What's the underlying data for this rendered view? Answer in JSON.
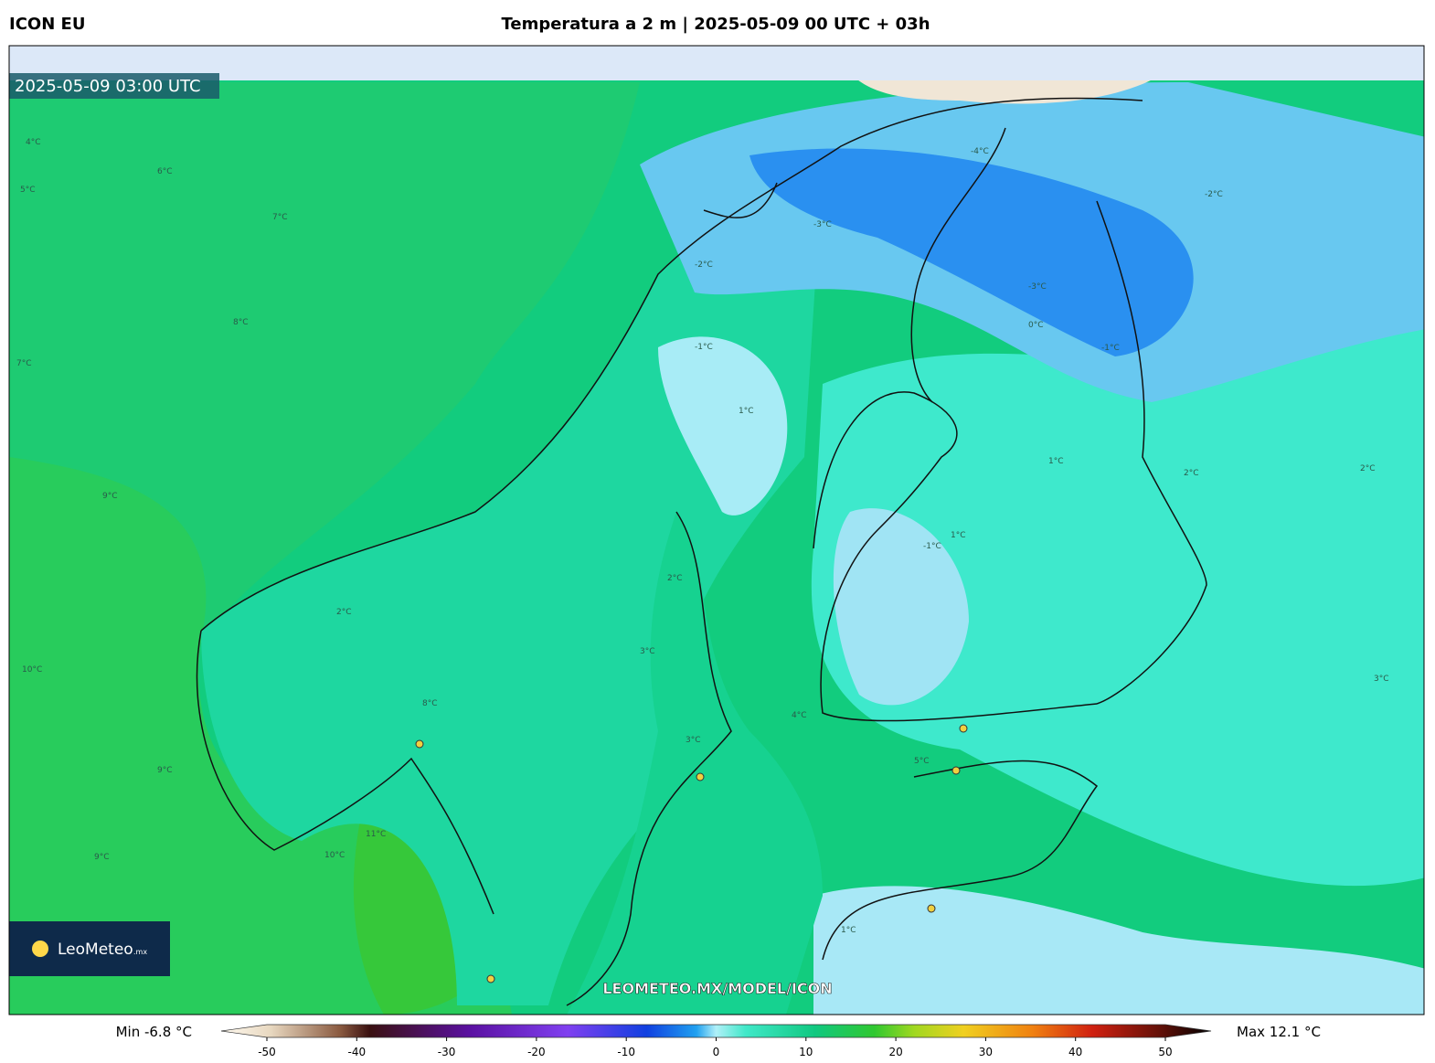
{
  "header": {
    "model": "ICON EU",
    "title": "Temperatura a 2 m | 2025-05-09 00 UTC + 03h"
  },
  "map": {
    "valid_time": "2025-05-09 03:00 UTC",
    "watermark": "LEOMETEO.MX/MODEL/ICON",
    "logo": {
      "name": "LeoMeteo",
      "suffix": ".mx"
    },
    "labels": [
      "4°C",
      "6°C",
      "5°C",
      "7°C",
      "8°C",
      "7°C",
      "9°C",
      "10°C",
      "9°C",
      "9°C",
      "10°C",
      "11°C",
      "8°C",
      "2°C",
      "3°C",
      "-2°C",
      "-1°C",
      "-3°C",
      "-4°C",
      "-2°C",
      "-3°C",
      "0°C",
      "1°C",
      "1°C",
      "-1°C",
      "1°C",
      "2°C",
      "3°C",
      "5°C",
      "4°C",
      "3°C",
      "2°C",
      "-1°C",
      "1°C",
      "2°C"
    ]
  },
  "colorbar": {
    "min_label": "Min -6.8 °C",
    "max_label": "Max 12.1 °C",
    "range": [
      -50,
      50
    ],
    "ticks": [
      -50,
      -40,
      -30,
      -20,
      -10,
      0,
      10,
      20,
      30,
      40,
      50
    ]
  }
}
